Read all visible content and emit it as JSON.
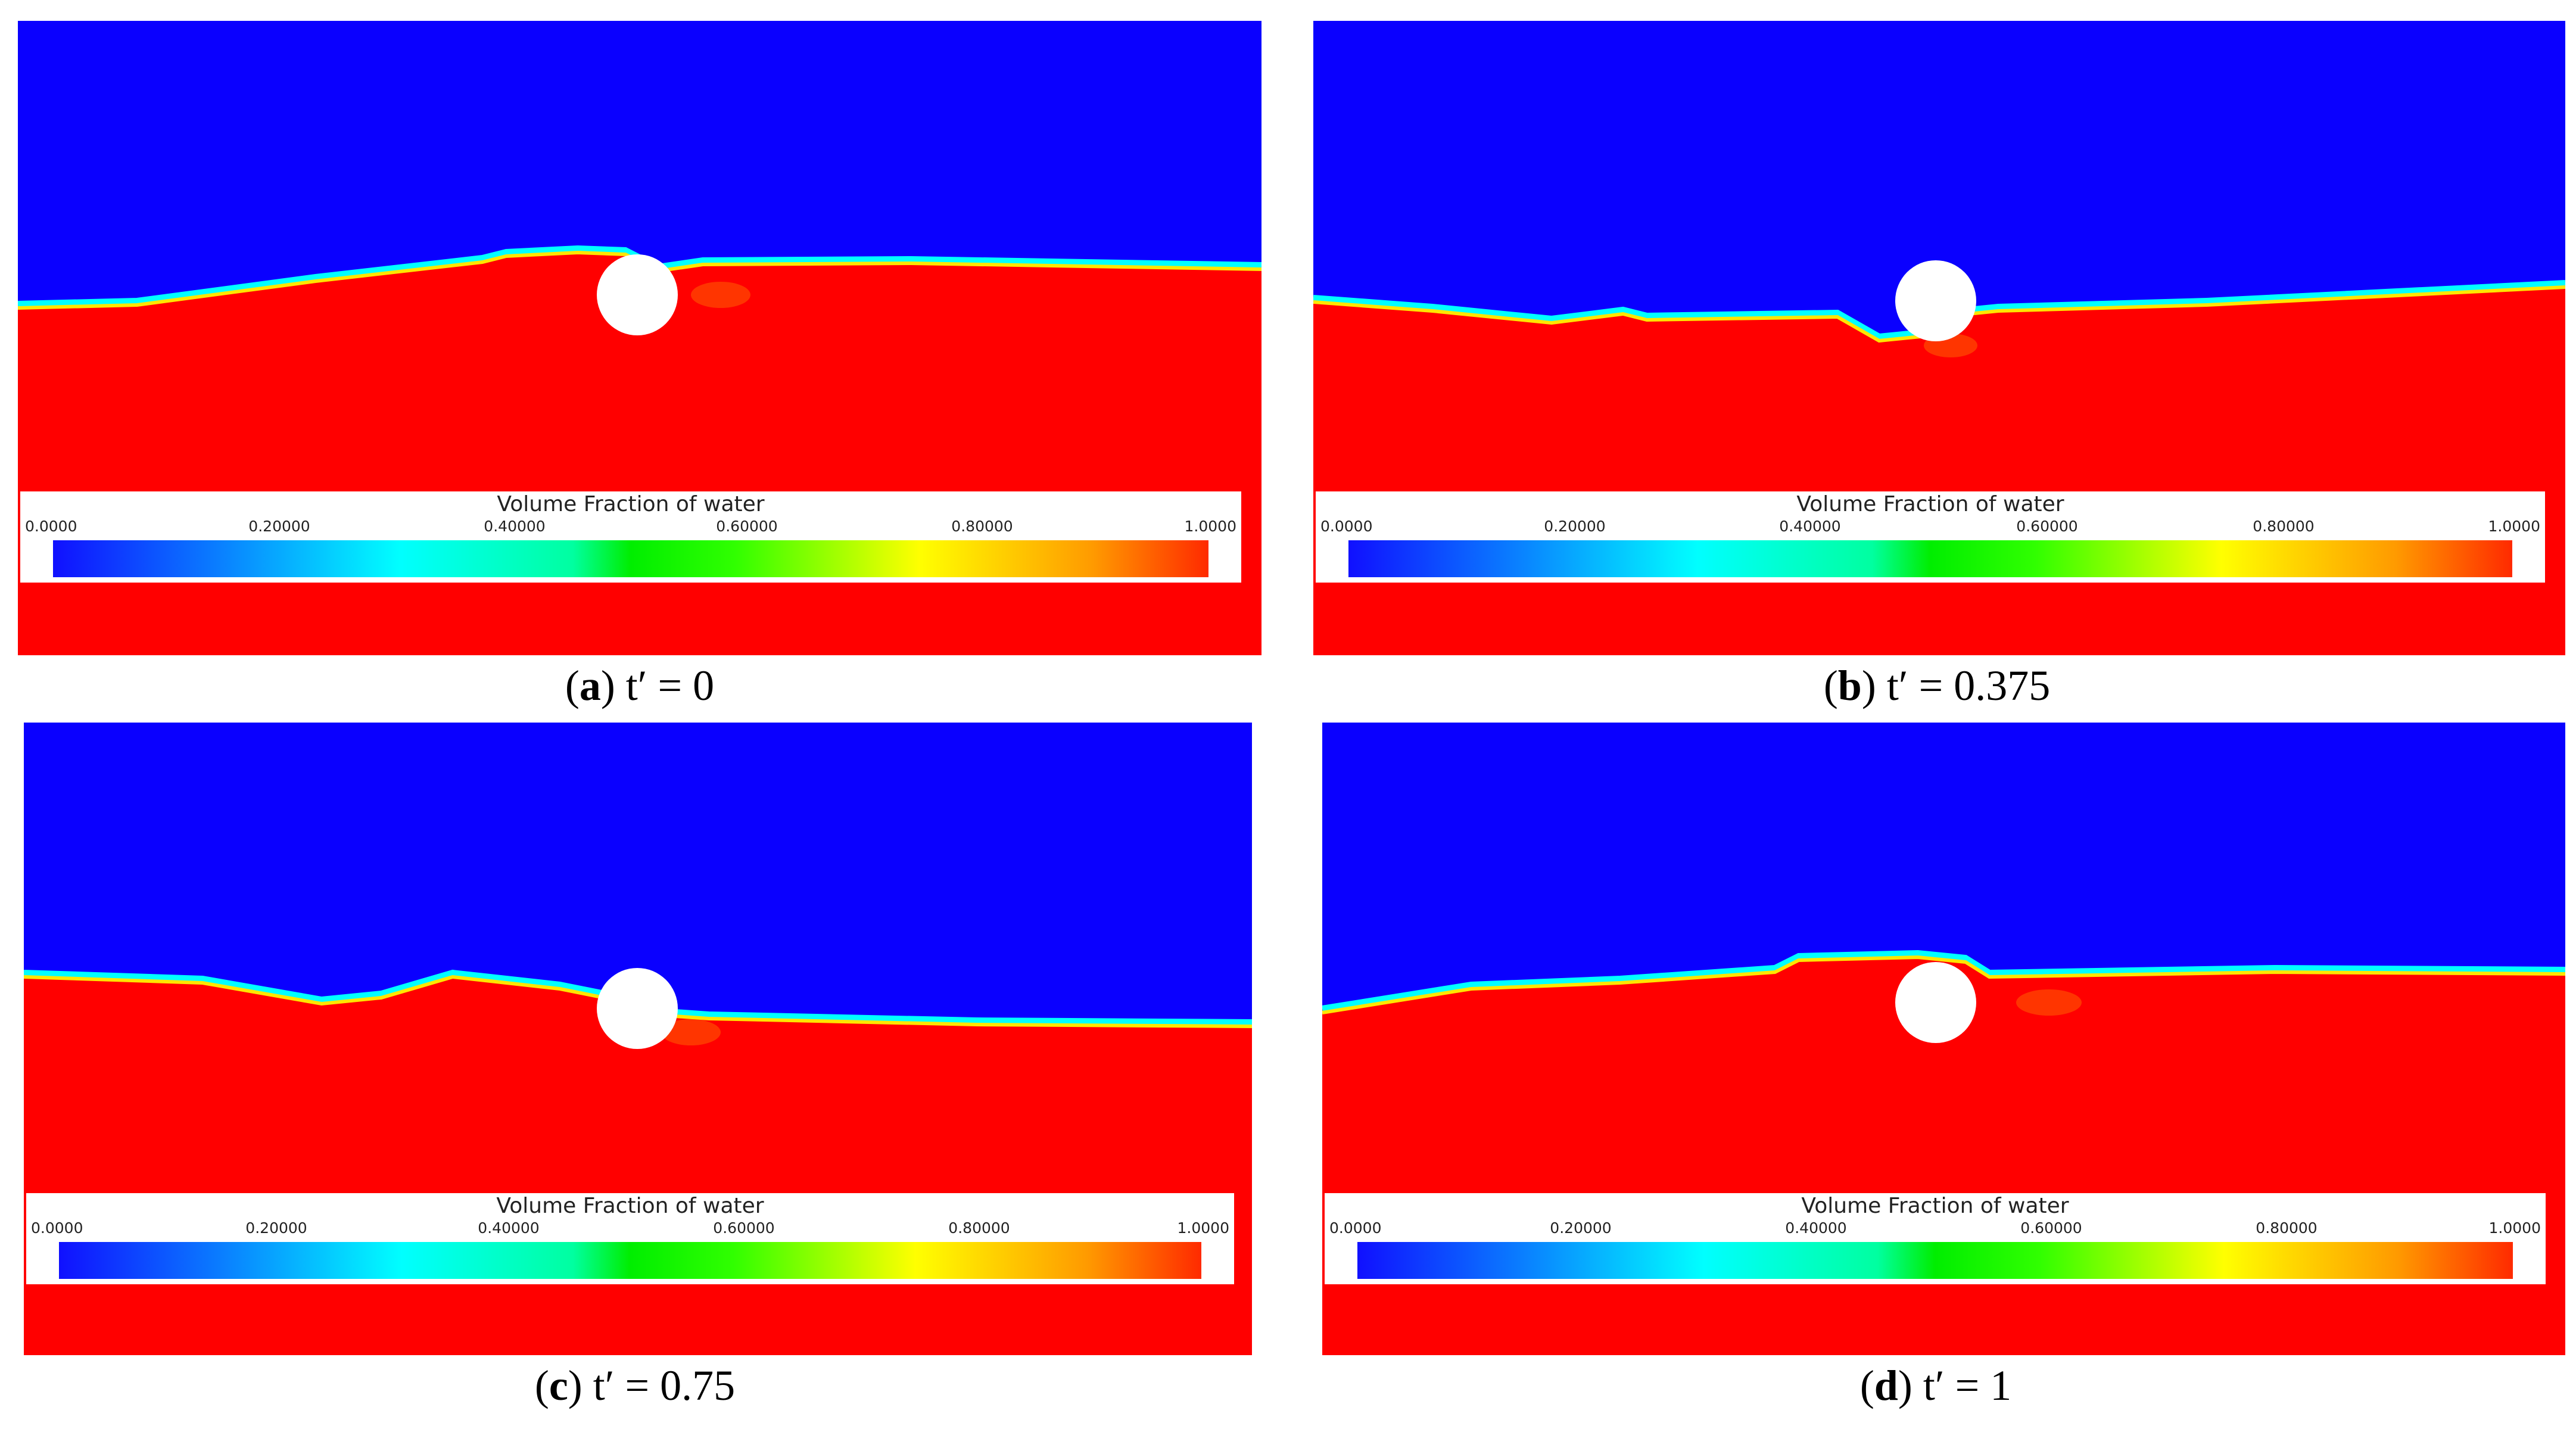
{
  "legend": {
    "title": "Volume Fraction of water",
    "ticks": [
      "0.0000",
      "0.20000",
      "0.40000",
      "0.60000",
      "0.80000",
      "1.0000"
    ]
  },
  "panels": [
    {
      "letter": "a",
      "caption_suffix": " t′ = 0"
    },
    {
      "letter": "b",
      "caption_suffix": " t′ = 0.375"
    },
    {
      "letter": "c",
      "caption_suffix": " t′ = 0.75"
    },
    {
      "letter": "d",
      "caption_suffix": " t′ = 1"
    }
  ],
  "colors": {
    "air": "#0a00ff",
    "water": "#ff0000",
    "cylinder": "#ffffff"
  }
}
